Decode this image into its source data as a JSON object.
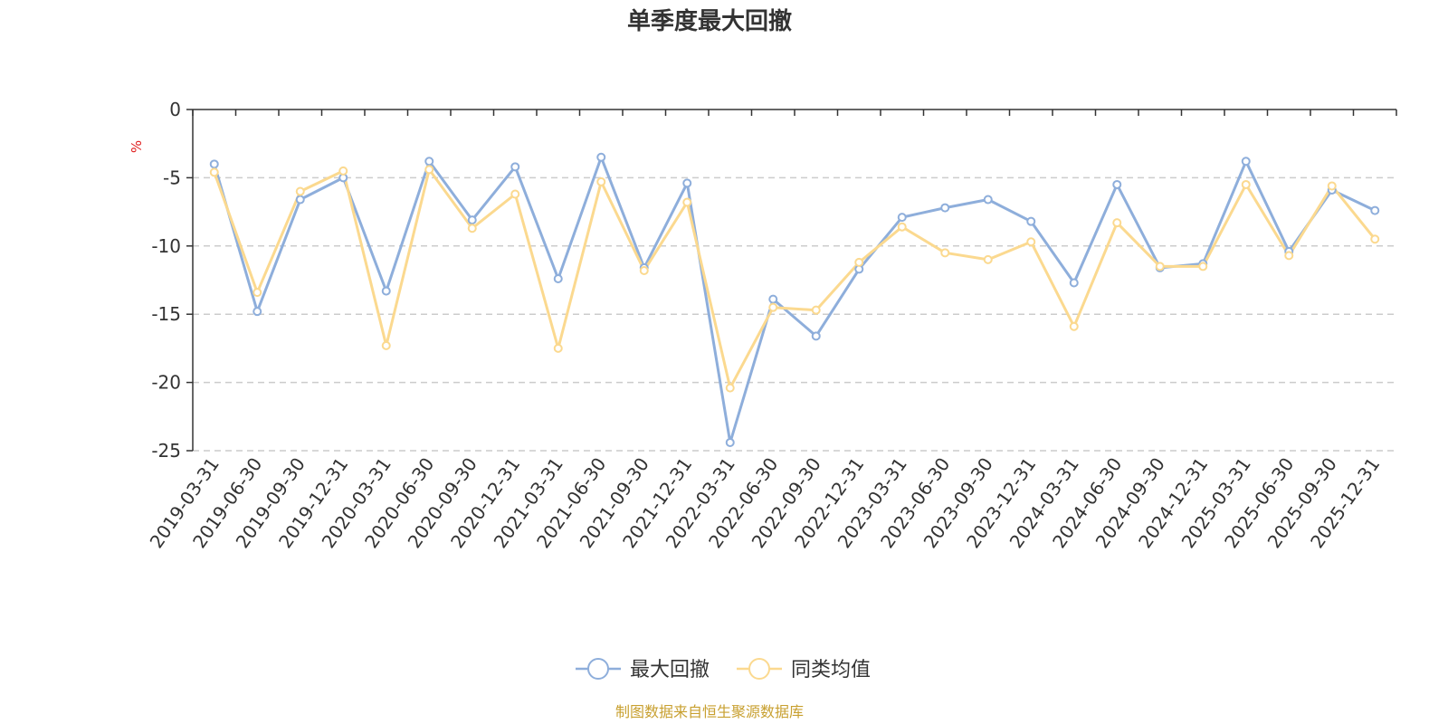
{
  "chart_data": {
    "type": "line",
    "title": "单季度最大回撤",
    "ylabel": "%",
    "ylim": [
      -25,
      0
    ],
    "yticks": [
      0,
      -5,
      -10,
      -15,
      -20,
      -25
    ],
    "grid": true,
    "legend_position": "bottom",
    "categories": [
      "2019-03-31",
      "2019-06-30",
      "2019-09-30",
      "2019-12-31",
      "2020-03-31",
      "2020-06-30",
      "2020-09-30",
      "2020-12-31",
      "2021-03-31",
      "2021-06-30",
      "2021-09-30",
      "2021-12-31",
      "2022-03-31",
      "2022-06-30",
      "2022-09-30",
      "2022-12-31",
      "2023-03-31",
      "2023-06-30",
      "2023-09-30",
      "2023-12-31",
      "2024-03-31",
      "2024-06-30",
      "2024-09-30",
      "2024-12-31",
      "2025-03-31",
      "2025-06-30",
      "2025-09-30",
      "2025-12-31"
    ],
    "series": [
      {
        "name": "最大回撤",
        "color": "#8eaedb",
        "values": [
          -4.0,
          -14.8,
          -6.6,
          -5.0,
          -13.3,
          -3.8,
          -8.1,
          -4.2,
          -12.4,
          -3.5,
          -11.6,
          -5.4,
          -24.4,
          -13.9,
          -16.6,
          -11.7,
          -7.9,
          -7.2,
          -6.6,
          -8.2,
          -12.7,
          -5.5,
          -11.6,
          -11.3,
          -3.8,
          -10.4,
          -5.9,
          -7.4
        ]
      },
      {
        "name": "同类均值",
        "color": "#fbd98f",
        "values": [
          -4.6,
          -13.4,
          -6.0,
          -4.5,
          -17.3,
          -4.4,
          -8.7,
          -6.2,
          -17.5,
          -5.3,
          -11.8,
          -6.8,
          -20.4,
          -14.5,
          -14.7,
          -11.2,
          -8.6,
          -10.5,
          -11.0,
          -9.7,
          -15.9,
          -8.3,
          -11.5,
          -11.5,
          -5.5,
          -10.7,
          -5.6,
          -9.5
        ]
      }
    ]
  },
  "footer": {
    "source": "制图数据来自恒生聚源数据库"
  }
}
